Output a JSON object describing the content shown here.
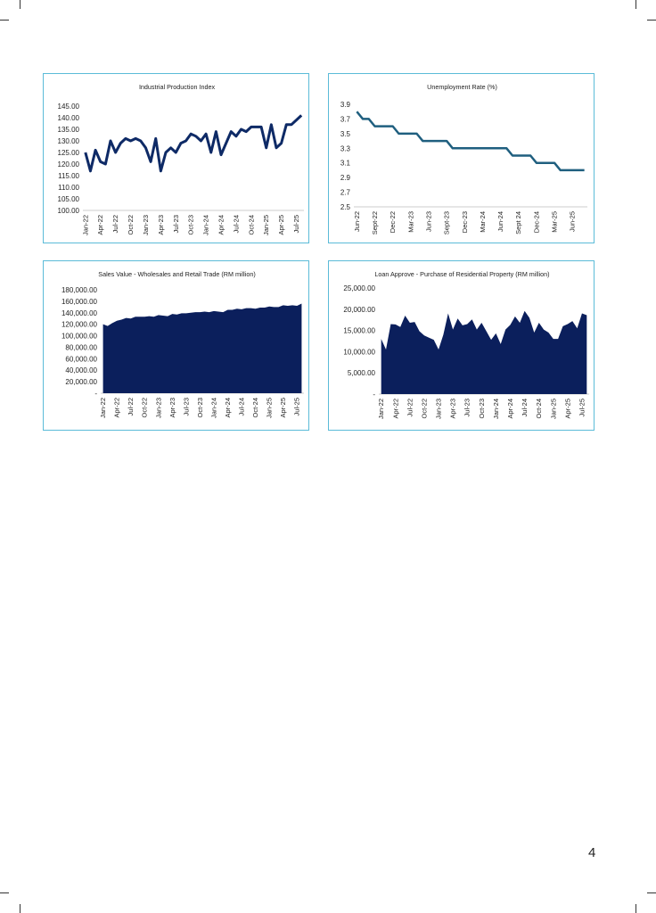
{
  "chart_data": [
    {
      "type": "line",
      "title": "Industrial Production Index",
      "color": "#0e2a66",
      "categories": [
        "Jan-22",
        null,
        null,
        "Apr-22",
        null,
        null,
        "Jul-22",
        null,
        null,
        "Oct-22",
        null,
        null,
        "Jan-23",
        null,
        null,
        "Apr-23",
        null,
        null,
        "Jul-23",
        null,
        null,
        "Oct-23",
        null,
        null,
        "Jan-24",
        null,
        null,
        "Apr-24",
        null,
        null,
        "Jul-24",
        null,
        null,
        "Oct-24",
        null,
        null,
        "Jan-25",
        null,
        null,
        "Apr-25",
        null,
        null,
        "Jul-25",
        null
      ],
      "values": [
        125,
        117,
        126,
        121,
        120,
        130,
        125,
        129,
        131,
        130,
        131,
        130,
        127,
        121,
        131,
        117,
        125,
        127,
        125,
        129,
        130,
        133,
        132,
        130,
        133,
        125,
        134,
        124,
        129,
        134,
        132,
        135,
        134,
        136,
        136,
        136,
        127,
        137,
        127,
        129,
        137,
        137,
        139,
        141
      ],
      "ylim": [
        100,
        145
      ],
      "yticks": [
        {
          "value": 100,
          "label": "100.00"
        },
        {
          "value": 105,
          "label": "105.00"
        },
        {
          "value": 110,
          "label": "110.00"
        },
        {
          "value": 115,
          "label": "115.00"
        },
        {
          "value": 120,
          "label": "120.00"
        },
        {
          "value": 125,
          "label": "125.00"
        },
        {
          "value": 130,
          "label": "130.00"
        },
        {
          "value": 135,
          "label": "135.00"
        },
        {
          "value": 140,
          "label": "140.00"
        },
        {
          "value": 145,
          "label": "145.00"
        }
      ]
    },
    {
      "type": "line",
      "title": "Unemployment Rate (%)",
      "color": "#1f5f7f",
      "categories": [
        "Jun-22",
        null,
        null,
        "Sept-22",
        null,
        null,
        "Dec-22",
        null,
        null,
        "Mar-23",
        null,
        null,
        "Jun-23",
        null,
        null,
        "Sept-23",
        null,
        null,
        "Dec-23",
        null,
        null,
        "Mar-24",
        null,
        null,
        "Jun-24",
        null,
        null,
        "Sept 24",
        null,
        null,
        "Dec-24",
        null,
        null,
        "Mar-25",
        null,
        null,
        "Jun-25",
        null,
        null
      ],
      "values": [
        3.8,
        3.7,
        3.7,
        3.6,
        3.6,
        3.6,
        3.6,
        3.5,
        3.5,
        3.5,
        3.5,
        3.4,
        3.4,
        3.4,
        3.4,
        3.4,
        3.3,
        3.3,
        3.3,
        3.3,
        3.3,
        3.3,
        3.3,
        3.3,
        3.3,
        3.3,
        3.2,
        3.2,
        3.2,
        3.2,
        3.1,
        3.1,
        3.1,
        3.1,
        3.0,
        3.0,
        3.0,
        3.0,
        3.0
      ],
      "ylim": [
        2.5,
        3.9
      ],
      "yticks": [
        2.5,
        2.7,
        2.9,
        3.1,
        3.3,
        3.5,
        3.7,
        3.9
      ]
    },
    {
      "type": "area",
      "title": "Sales Value - Wholesales and Retail Trade (RM million)",
      "color": "#0b1f5c",
      "categories": [
        "Jan-22",
        null,
        null,
        "Apr-22",
        null,
        null,
        "Jul-22",
        null,
        null,
        "Oct-22",
        null,
        null,
        "Jan-23",
        null,
        null,
        "Apr-23",
        null,
        null,
        "Jul-23",
        null,
        null,
        "Oct-23",
        null,
        null,
        "Jan-24",
        null,
        null,
        "Apr-24",
        null,
        null,
        "Jul-24",
        null,
        null,
        "Oct-24",
        null,
        null,
        "Jan-25",
        null,
        null,
        "Apr-25",
        null,
        null,
        "Jul-25",
        null
      ],
      "values": [
        120000,
        117000,
        122000,
        126000,
        128000,
        131000,
        130000,
        133000,
        133000,
        133000,
        134000,
        133000,
        136000,
        135000,
        134000,
        138000,
        137000,
        139000,
        139000,
        140000,
        141000,
        141000,
        142000,
        141000,
        143000,
        142000,
        141000,
        145000,
        145000,
        147000,
        146000,
        148000,
        148000,
        147000,
        149000,
        149000,
        151000,
        150000,
        150000,
        153000,
        152000,
        153000,
        152000,
        156000
      ],
      "ylim": [
        0,
        180000
      ],
      "yticks": [
        {
          "value": 0,
          "label": "-"
        },
        {
          "value": 20000,
          "label": "20,000.00"
        },
        {
          "value": 40000,
          "label": "40,000.00"
        },
        {
          "value": 60000,
          "label": "60,000.00"
        },
        {
          "value": 80000,
          "label": "80,000.00"
        },
        {
          "value": 100000,
          "label": "100,000.00"
        },
        {
          "value": 120000,
          "label": "120,000.00"
        },
        {
          "value": 140000,
          "label": "140,000.00"
        },
        {
          "value": 160000,
          "label": "160,000.00"
        },
        {
          "value": 180000,
          "label": "180,000.00"
        }
      ]
    },
    {
      "type": "area",
      "title": "Loan Approve - Purchase of Residential Property (RM million)",
      "color": "#0b1f5c",
      "categories": [
        "Jan-22",
        null,
        null,
        "Apr-22",
        null,
        null,
        "Jul-22",
        null,
        null,
        "Oct-22",
        null,
        null,
        "Jan-23",
        null,
        null,
        "Apr-23",
        null,
        null,
        "Jul-23",
        null,
        null,
        "Oct-23",
        null,
        null,
        "Jan-24",
        null,
        null,
        "Apr-24",
        null,
        null,
        "Jul-24",
        null,
        null,
        "Oct-24",
        null,
        null,
        "Jan-25",
        null,
        null,
        "Apr-25",
        null,
        null,
        "Jul-25",
        null
      ],
      "values": [
        13000,
        10500,
        16500,
        16400,
        15800,
        18500,
        16800,
        17000,
        14800,
        13800,
        13300,
        12800,
        10500,
        14000,
        19000,
        15200,
        17800,
        16200,
        16500,
        17600,
        15200,
        16800,
        14800,
        12800,
        14300,
        11800,
        15200,
        16300,
        18300,
        16800,
        19600,
        18000,
        14500,
        16800,
        15200,
        14500,
        13000,
        13000,
        16000,
        16500,
        17200,
        15500,
        19000,
        18600
      ],
      "ylim": [
        0,
        25000
      ],
      "yticks": [
        {
          "value": 0,
          "label": "-"
        },
        {
          "value": 5000,
          "label": "5,000.00"
        },
        {
          "value": 10000,
          "label": "10,000.00"
        },
        {
          "value": 15000,
          "label": "15,000.00"
        },
        {
          "value": 20000,
          "label": "20,000.00"
        },
        {
          "value": 25000,
          "label": "25,000.00"
        }
      ]
    }
  ],
  "page_number": "4"
}
